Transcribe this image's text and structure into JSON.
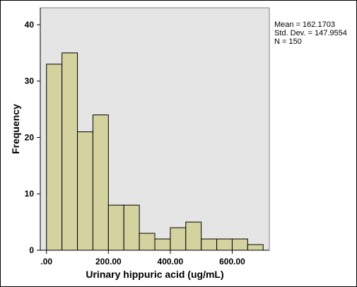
{
  "chart_data": {
    "type": "bar",
    "subtype": "histogram",
    "xlabel": "Urinary hippuric acid (ug/mL)",
    "ylabel": "Frequency",
    "bin_width": 50,
    "bin_start": 0,
    "values": [
      33,
      35,
      21,
      24,
      8,
      8,
      3,
      2,
      4,
      5,
      2,
      2,
      2,
      1
    ],
    "xlim": [
      -20,
      720
    ],
    "ylim": [
      0,
      43
    ],
    "x_ticks": [
      0,
      200,
      400,
      600
    ],
    "x_tick_labels": [
      ".00",
      "200.00",
      "400.00",
      "600.00"
    ],
    "y_ticks": [
      0,
      10,
      20,
      30,
      40
    ],
    "y_tick_labels": [
      "0",
      "10",
      "20",
      "30",
      "40"
    ],
    "grid": false,
    "colors": {
      "bar_fill": "#d4d29e",
      "bar_stroke": "#000000",
      "plot_background": "#e5e5e5",
      "axis": "#000000"
    },
    "stats": {
      "mean": "Mean = 162.1703",
      "std": "Std. Dev. = 147.9554",
      "n": "N = 150"
    }
  }
}
